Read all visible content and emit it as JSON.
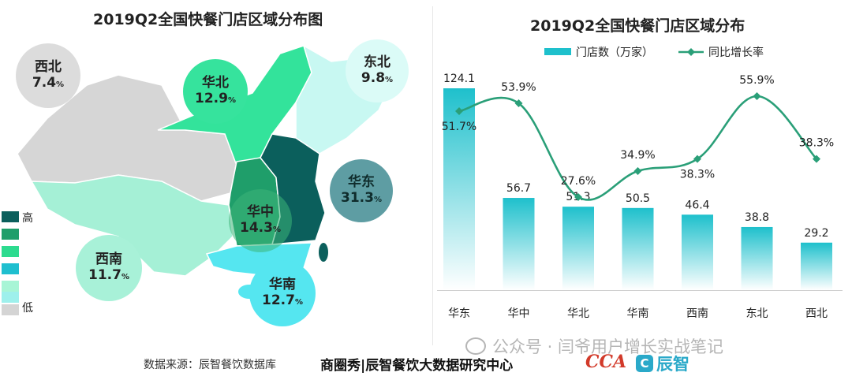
{
  "left_panel": {
    "title": "2019Q2全国快餐门店区域分布图",
    "legend": {
      "high": "高",
      "low": "低",
      "colors": [
        "#0b5f5c",
        "#1f9e6a",
        "#2ddb8f",
        "#1fbfcf",
        "#a8f5d6",
        "#9ef0ec",
        "#d4d4d4"
      ]
    },
    "regions": [
      {
        "name": "西北",
        "share": "7.4",
        "unit": "%",
        "color": "#d6d6d6"
      },
      {
        "name": "华北",
        "share": "12.9",
        "unit": "%",
        "color": "#33e39b"
      },
      {
        "name": "东北",
        "share": "9.8",
        "unit": "%",
        "color": "#d8fbf6"
      },
      {
        "name": "华东",
        "share": "31.3",
        "unit": "%",
        "color": "#5e9da3"
      },
      {
        "name": "华中",
        "share": "14.3",
        "unit": "%",
        "color": "#1f9e6a"
      },
      {
        "name": "西南",
        "share": "11.7",
        "unit": "%",
        "color": "#a5f0d6"
      },
      {
        "name": "华南",
        "share": "12.7",
        "unit": "%",
        "color": "#55e6f0"
      }
    ]
  },
  "chart_data": {
    "type": "bar",
    "title": "2019Q2全国快餐门店区域分布",
    "categories": [
      "华东",
      "华中",
      "华北",
      "华南",
      "西南",
      "东北",
      "西北"
    ],
    "series": [
      {
        "name": "门店数（万家）",
        "type": "bar",
        "values": [
          124.1,
          56.7,
          51.3,
          50.5,
          46.4,
          38.8,
          29.2
        ],
        "color": "#1ec0cc"
      },
      {
        "name": "同比增长率",
        "type": "line",
        "values": [
          51.7,
          53.9,
          27.6,
          34.9,
          38.3,
          55.9,
          38.3
        ],
        "unit": "%",
        "color": "#2a9f78"
      }
    ],
    "legend_position": "top",
    "grid": false
  },
  "footer": {
    "source": "数据来源：辰智餐饮数据库",
    "center": "商圈秀|辰智餐饮大数据研究中心",
    "watermark": "公众号 · 闫爷用户增长实战笔记",
    "logo_left": "CCA",
    "logo_right": "辰智"
  }
}
